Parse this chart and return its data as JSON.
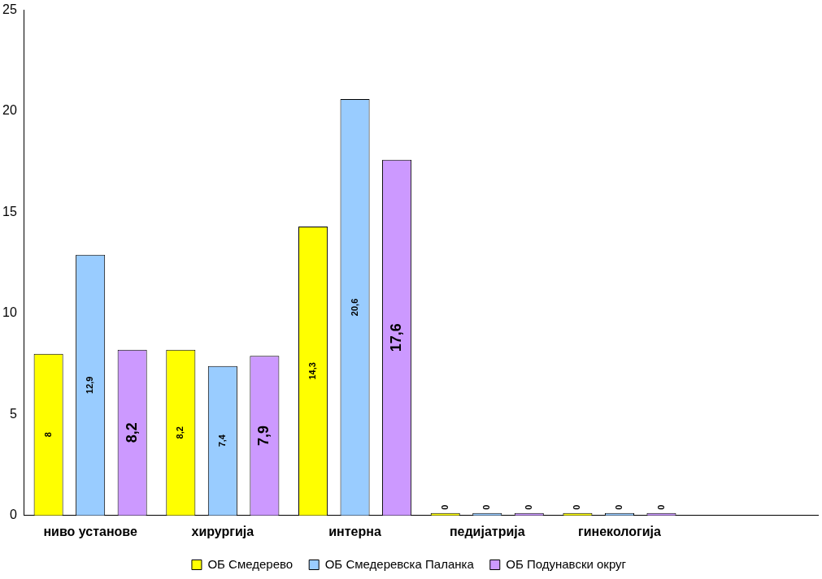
{
  "chart_data": {
    "type": "bar",
    "categories": [
      "ниво установе",
      "хирургија",
      "интерна",
      "педијатрија",
      "гинекологија",
      null
    ],
    "series": [
      {
        "name": "ОБ Смедерево",
        "color": "#ffff00",
        "values": [
          8,
          8.2,
          14.3,
          0,
          0,
          null
        ],
        "value_labels": [
          "8",
          "8,2",
          "14,3",
          "0",
          "0",
          null
        ]
      },
      {
        "name": "ОБ Смедеревска Паланка",
        "color": "#99ccff",
        "values": [
          12.9,
          7.4,
          20.6,
          0,
          0,
          null
        ],
        "value_labels": [
          "12,9",
          "7,4",
          "20,6",
          "0",
          "0",
          null
        ]
      },
      {
        "name": "ОБ Подунавски округ",
        "color": "#cc99ff",
        "values": [
          8.2,
          7.9,
          17.6,
          0,
          0,
          null
        ],
        "value_labels": [
          "8,2",
          "7,9",
          "17,6",
          "0",
          "0",
          null
        ]
      }
    ],
    "ylim": [
      0,
      25
    ],
    "yticks": [
      0,
      5,
      10,
      15,
      20,
      25
    ],
    "grid": false,
    "legend": "bottom"
  }
}
